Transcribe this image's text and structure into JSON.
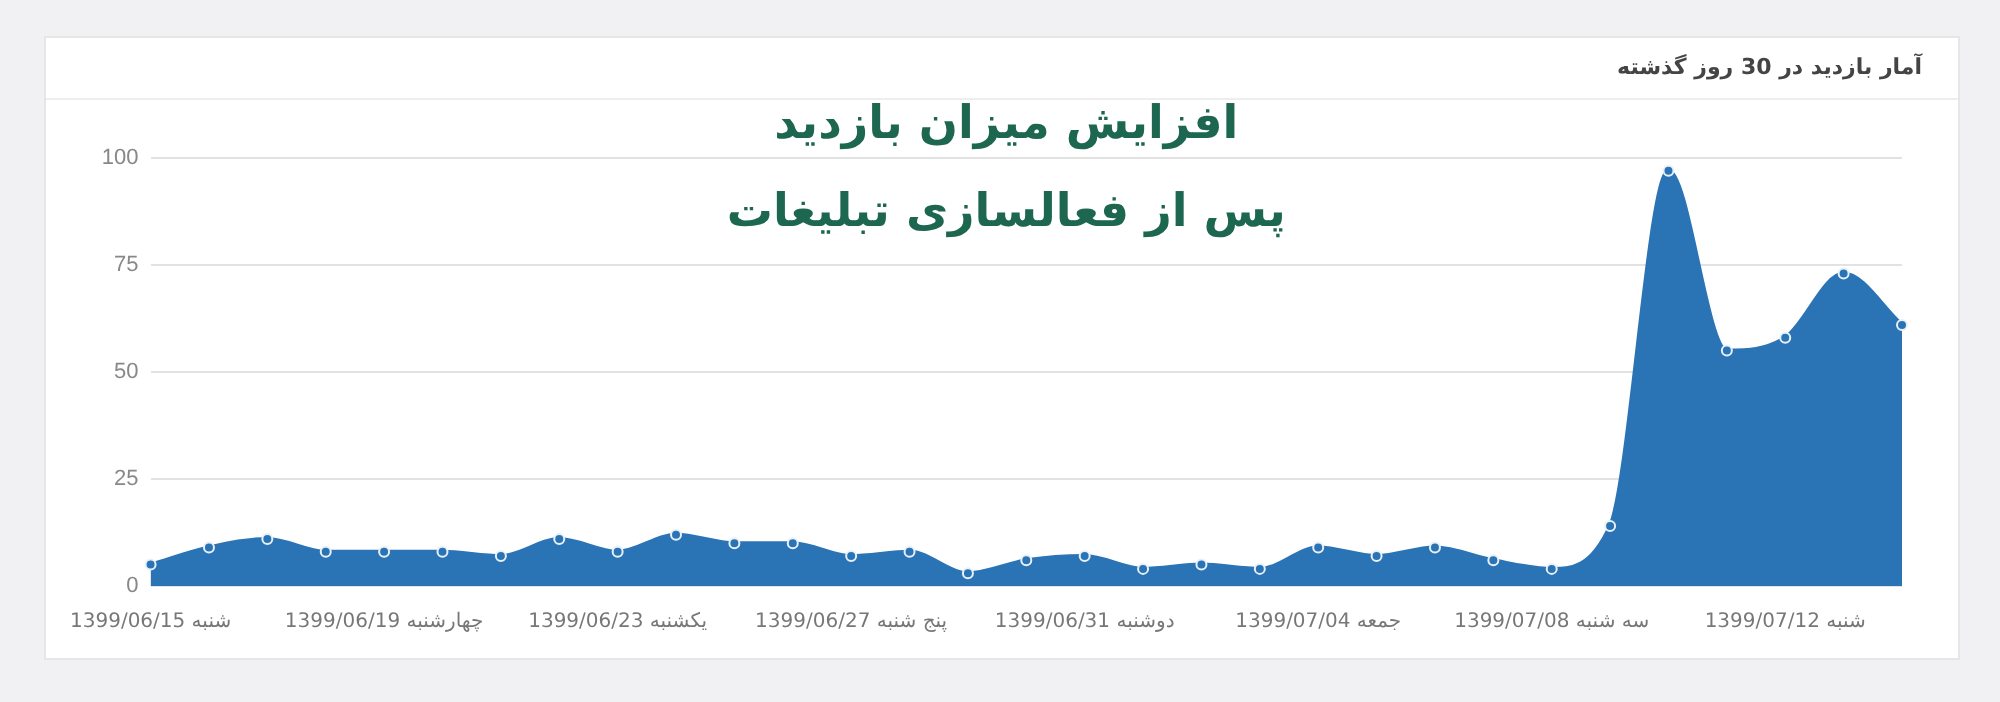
{
  "chart_data": {
    "type": "area",
    "title": "آمار بازدید در 30 روز گذشته",
    "annotations": [
      "افزایش میزان بازدید",
      "پس از فعالسازی تبلیغات"
    ],
    "categories": [
      "1399/06/15 شنبه",
      null,
      null,
      null,
      "1399/06/19 چهارشنبه",
      null,
      null,
      null,
      "1399/06/23 یکشنبه",
      null,
      null,
      null,
      "1399/06/27 پنج شنبه",
      null,
      null,
      null,
      "1399/06/31 دوشنبه",
      null,
      null,
      null,
      "1399/07/04 جمعه",
      null,
      null,
      null,
      "1399/07/08 سه شنبه",
      null,
      null,
      null,
      "1399/07/12 شنبه",
      null,
      null
    ],
    "values": [
      5,
      9,
      11,
      8,
      8,
      8,
      7,
      11,
      8,
      12,
      10,
      10,
      7,
      8,
      3,
      6,
      7,
      4,
      5,
      4,
      9,
      7,
      9,
      6,
      4,
      14,
      97,
      55,
      58,
      73,
      61
    ],
    "color": "#2a74b6",
    "ylim": [
      0,
      100
    ],
    "yticks": [
      0,
      25,
      50,
      75,
      100
    ],
    "grid": "y",
    "marker": "circle"
  }
}
